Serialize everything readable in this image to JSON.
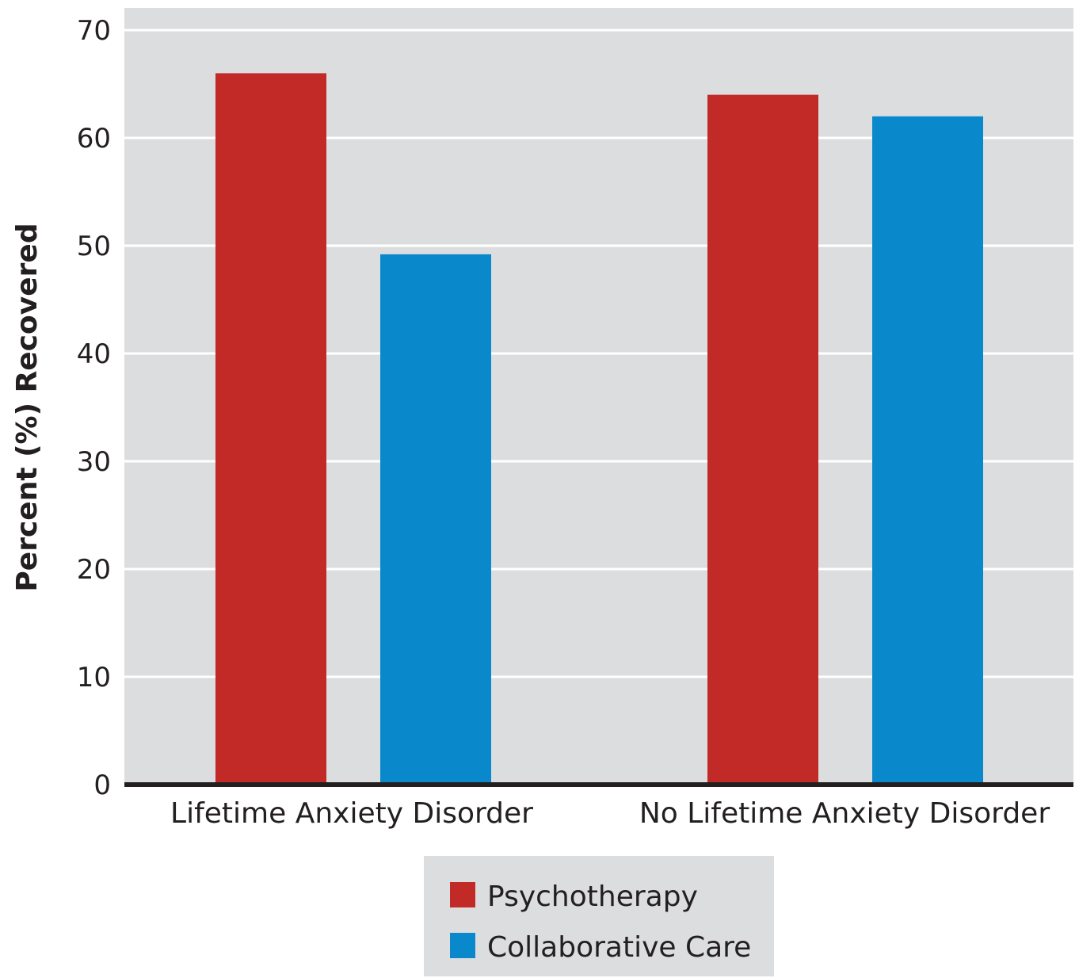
{
  "chart_data": {
    "type": "bar",
    "title": "",
    "xlabel": "",
    "ylabel": "Percent (%) Recovered",
    "ylim": [
      0,
      70
    ],
    "yticks": [
      0,
      10,
      20,
      30,
      40,
      50,
      60,
      70
    ],
    "grid": true,
    "categories": [
      "Lifetime Anxiety Disorder",
      "No Lifetime Anxiety Disorder"
    ],
    "series": [
      {
        "name": "Psychotherapy",
        "color": "#c12a26",
        "values": [
          66,
          64
        ]
      },
      {
        "name": "Collaborative Care",
        "color": "#0a88cc",
        "values": [
          49.2,
          62
        ]
      }
    ],
    "legend_position": "bottom-center",
    "plot_background": "#dcddde"
  }
}
